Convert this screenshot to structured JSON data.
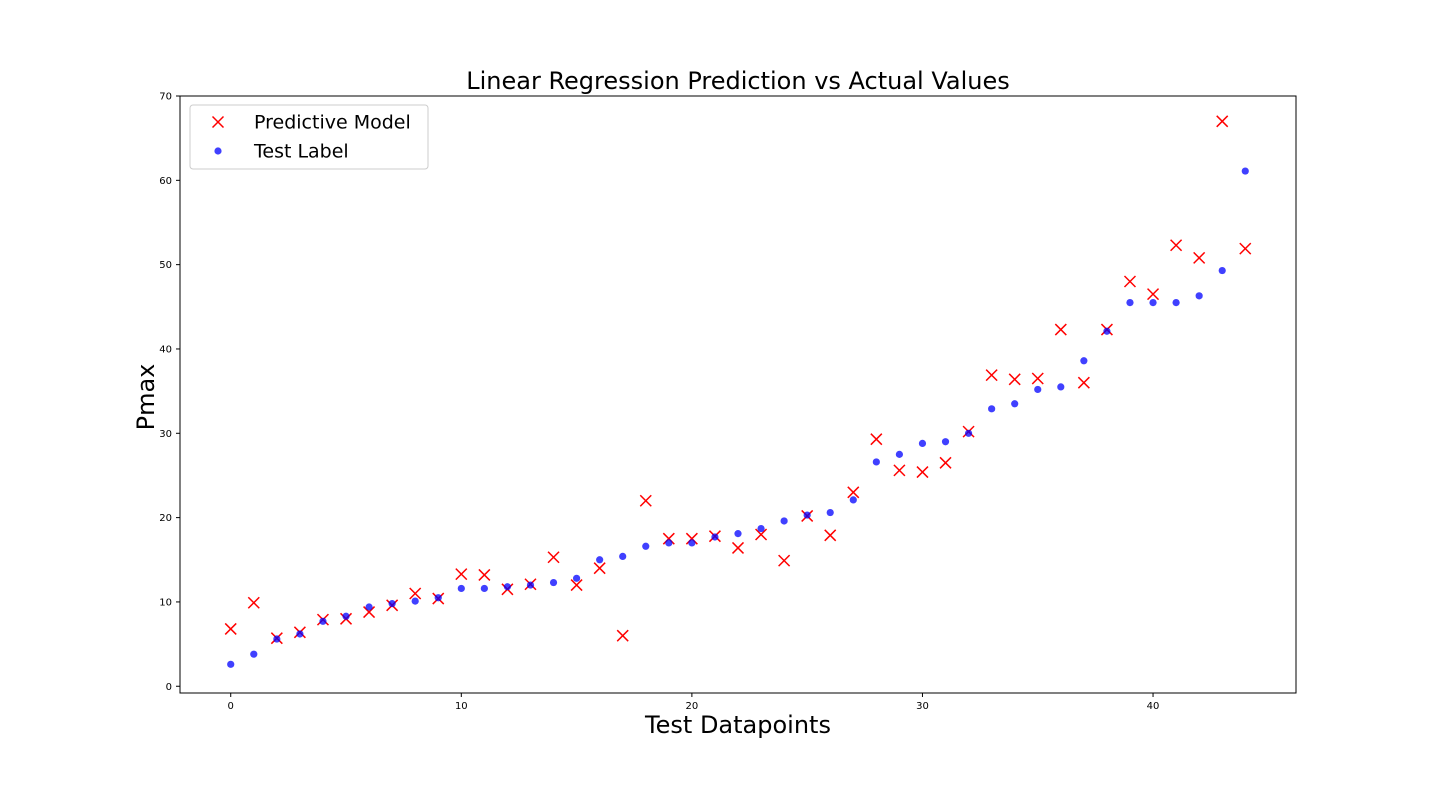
{
  "chart_data": {
    "type": "scatter",
    "title": "Linear Regression Prediction vs Actual Values",
    "xlabel": "Test Datapoints",
    "ylabel": "Pmax",
    "xlim": [
      -2.2,
      46.2
    ],
    "ylim": [
      -0.8,
      70
    ],
    "x_ticks": [
      0,
      10,
      20,
      30,
      40
    ],
    "y_ticks": [
      0,
      10,
      20,
      30,
      40,
      50,
      60,
      70
    ],
    "legend_position": "upper-left",
    "grid": false,
    "series": [
      {
        "name": "Predictive Model",
        "marker": "x",
        "color": "#ff0000",
        "x": [
          0,
          1,
          2,
          3,
          4,
          5,
          6,
          7,
          8,
          9,
          10,
          11,
          12,
          13,
          14,
          15,
          16,
          17,
          18,
          19,
          20,
          21,
          22,
          23,
          24,
          25,
          26,
          27,
          28,
          29,
          30,
          31,
          32,
          33,
          34,
          35,
          36,
          37,
          38,
          39,
          40,
          41,
          42,
          43,
          44
        ],
        "y": [
          6.8,
          9.9,
          5.7,
          6.4,
          7.9,
          8.0,
          8.8,
          9.6,
          11.0,
          10.4,
          13.3,
          13.2,
          11.5,
          12.1,
          15.3,
          12.0,
          14.0,
          6.0,
          22.0,
          17.5,
          17.5,
          17.8,
          16.4,
          18.0,
          14.9,
          20.2,
          17.9,
          23.0,
          29.3,
          25.6,
          25.4,
          26.5,
          30.2,
          36.9,
          36.4,
          36.5,
          42.3,
          36.0,
          42.3,
          48.0,
          46.5,
          52.3,
          50.8,
          67.0,
          51.9
        ]
      },
      {
        "name": "Test Label",
        "marker": "o",
        "color": "#0000ff",
        "x": [
          0,
          1,
          2,
          3,
          4,
          5,
          6,
          7,
          8,
          9,
          10,
          11,
          12,
          13,
          14,
          15,
          16,
          17,
          18,
          19,
          20,
          21,
          22,
          23,
          24,
          25,
          26,
          27,
          28,
          29,
          30,
          31,
          32,
          33,
          34,
          35,
          36,
          37,
          38,
          39,
          40,
          41,
          42,
          43,
          44
        ],
        "y": [
          2.6,
          3.8,
          5.6,
          6.2,
          7.7,
          8.3,
          9.4,
          9.8,
          10.1,
          10.5,
          11.6,
          11.6,
          11.8,
          12.0,
          12.3,
          12.8,
          15.0,
          15.4,
          16.6,
          17.0,
          17.0,
          17.7,
          18.1,
          18.7,
          19.6,
          20.3,
          20.6,
          22.1,
          26.6,
          27.5,
          28.8,
          29.0,
          30.0,
          32.9,
          33.5,
          35.2,
          35.5,
          38.6,
          42.1,
          45.5,
          45.5,
          45.5,
          46.3,
          49.3,
          61.1
        ]
      }
    ]
  }
}
